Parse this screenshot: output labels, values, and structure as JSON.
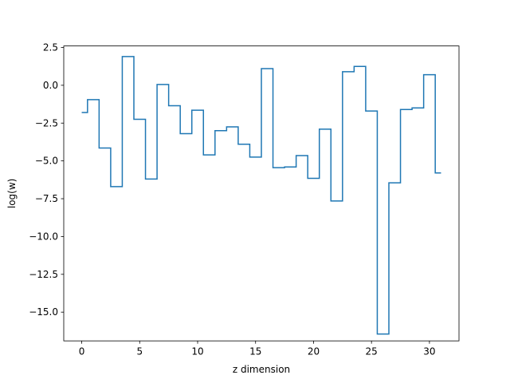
{
  "chart_data": {
    "type": "line",
    "drawstyle": "steps-mid",
    "xlabel": "z dimension",
    "ylabel": "log(w)",
    "xlim": [
      -1.55,
      32.55
    ],
    "ylim": [
      -16.9,
      2.6
    ],
    "grid": false,
    "x_ticks": [
      0,
      5,
      10,
      15,
      20,
      25,
      30
    ],
    "x_tick_labels": [
      "0",
      "5",
      "10",
      "15",
      "20",
      "25",
      "30"
    ],
    "y_ticks": [
      2.5,
      0.0,
      -2.5,
      -5.0,
      -7.5,
      -10.0,
      -12.5,
      -15.0
    ],
    "y_tick_labels": [
      "2.5",
      "0.0",
      "−2.5",
      "−5.0",
      "−7.5",
      "−10.0",
      "−12.5",
      "−15.0"
    ],
    "series": [
      {
        "color": "#1f77b4",
        "x": [
          0,
          1,
          2,
          3,
          4,
          5,
          6,
          7,
          8,
          9,
          10,
          11,
          12,
          13,
          14,
          15,
          16,
          17,
          18,
          19,
          20,
          21,
          22,
          23,
          24,
          25,
          26,
          27,
          28,
          29,
          30,
          31
        ],
        "y": [
          -1.8,
          -0.95,
          -4.15,
          -6.7,
          1.9,
          -2.25,
          -6.2,
          0.05,
          -1.35,
          -3.2,
          -1.65,
          -4.6,
          -3.0,
          -2.75,
          -3.9,
          -4.75,
          1.1,
          -5.45,
          -5.4,
          -4.65,
          -6.15,
          -2.9,
          -7.65,
          0.9,
          1.25,
          -1.7,
          -16.45,
          -6.45,
          -1.6,
          -1.5,
          0.7,
          -5.8
        ]
      }
    ]
  }
}
